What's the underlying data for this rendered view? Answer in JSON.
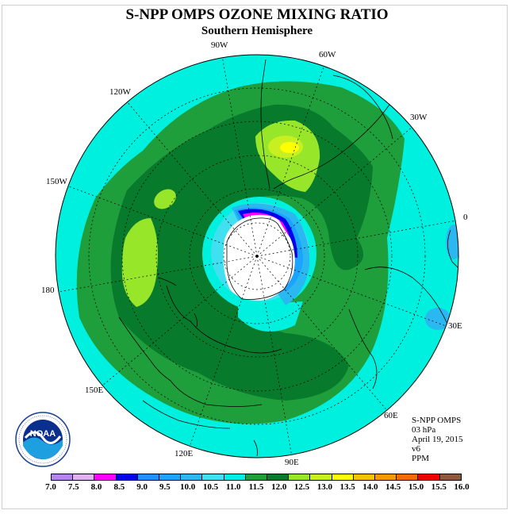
{
  "title": "S-NPP OMPS OZONE MIXING RATIO",
  "subtitle": "Southern Hemisphere",
  "longitude_labels": {
    "lon_90w": "90W",
    "lon_60w": "60W",
    "lon_30w": "30W",
    "lon_0": "0",
    "lon_30e": "30E",
    "lon_60e": "60E",
    "lon_90e": "90E",
    "lon_120e": "120E",
    "lon_150e": "150E",
    "lon_180": "180",
    "lon_150w": "150W",
    "lon_120w": "120W"
  },
  "info": {
    "instrument": "S-NPP OMPS",
    "level": "03 hPa",
    "date": "April 19, 2015",
    "version": "v6",
    "units": "PPM"
  },
  "logo_text": "NOAA",
  "colorbar": {
    "ticks": [
      "7.0",
      "7.5",
      "8.0",
      "8.5",
      "9.0",
      "9.5",
      "10.0",
      "10.5",
      "11.0",
      "11.5",
      "12.0",
      "12.5",
      "13.0",
      "13.5",
      "14.0",
      "14.5",
      "15.0",
      "15.5",
      "16.0"
    ],
    "colors": [
      "#b783ef",
      "#e0b0f0",
      "#ff00ff",
      "#0000ee",
      "#1e90ff",
      "#1aa3ff",
      "#2bb8f0",
      "#40e0f0",
      "#00f0e0",
      "#1f9e3c",
      "#087a2c",
      "#98e62a",
      "#c8f020",
      "#ffff00",
      "#f4c400",
      "#f49a00",
      "#f46a00",
      "#ee0000",
      "#8b5a3c"
    ]
  }
}
